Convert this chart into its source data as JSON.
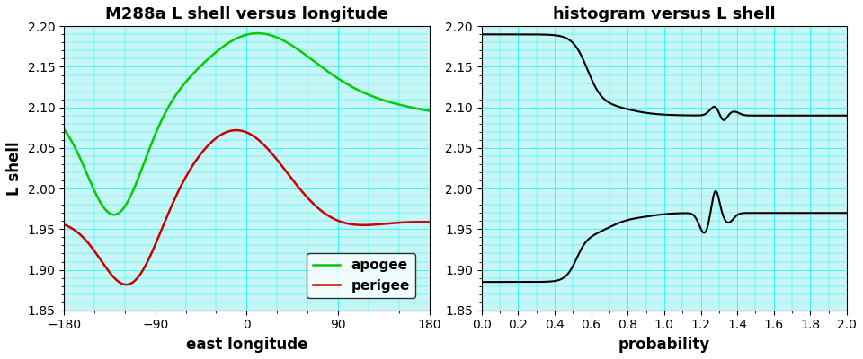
{
  "title_left": "M288a L shell versus longitude",
  "title_right": "histogram versus L shell",
  "xlabel_left": "east longitude",
  "ylabel_left": "L shell",
  "xlabel_right": "probability",
  "xlim_left": [
    -180,
    180
  ],
  "ylim": [
    1.85,
    2.2
  ],
  "xlim_right": [
    0.0,
    2.0
  ],
  "xticks_left": [
    -180,
    -90,
    0,
    90,
    180
  ],
  "yticks": [
    1.85,
    1.9,
    1.95,
    2.0,
    2.05,
    2.1,
    2.15,
    2.2
  ],
  "xticks_right": [
    0.0,
    0.2,
    0.4,
    0.6,
    0.8,
    1.0,
    1.2,
    1.4,
    1.6,
    1.8,
    2.0
  ],
  "bg_color": "#c8f5f5",
  "apogee_color": "#00cc00",
  "perigee_color": "#cc0000",
  "hist_color": "#000000",
  "title_fontsize": 13,
  "label_fontsize": 12,
  "tick_fontsize": 10,
  "legend_fontsize": 11
}
